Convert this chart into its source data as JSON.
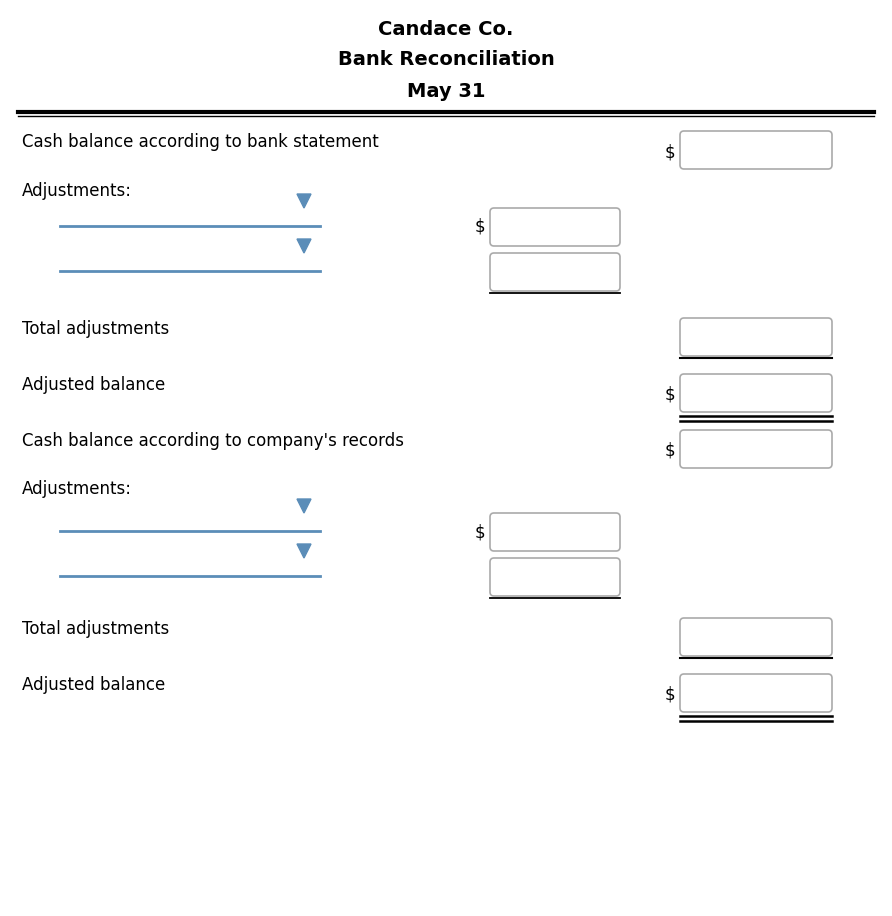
{
  "title_line1": "Candace Co.",
  "title_line2": "Bank Reconciliation",
  "title_line3": "May 31",
  "bg_color": "#ffffff",
  "text_color": "#000000",
  "blue_line_color": "#5b8db8",
  "arrow_color": "#5b8db8",
  "box_border_color": "#aaaaaa",
  "fig_width": 8.92,
  "fig_height": 9.16,
  "font_size_title": 14,
  "font_size_body": 12
}
